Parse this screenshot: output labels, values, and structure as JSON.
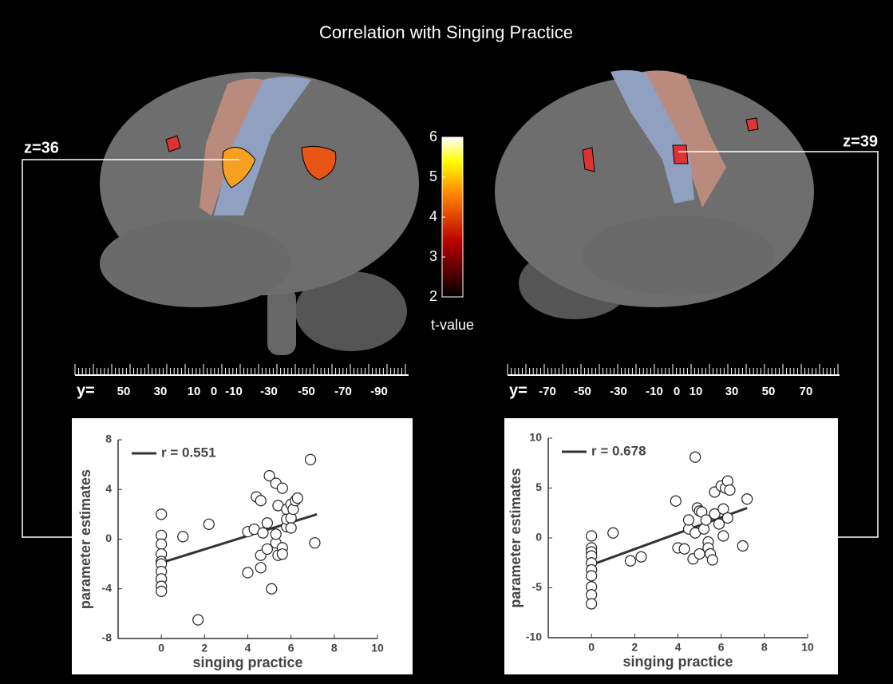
{
  "title": "Correlation with Singing Practice",
  "colorbar": {
    "lim": [
      2,
      6
    ],
    "ticks": [
      2,
      3,
      4,
      5,
      6
    ],
    "label": "t-value"
  },
  "left_panel": {
    "z_label": "z=36",
    "ruler_prefix": "y=",
    "ruler_labels": [
      50,
      30,
      10,
      0,
      -10,
      -30,
      -50,
      -70,
      -90
    ]
  },
  "right_panel": {
    "z_label": "z=39",
    "ruler_prefix": "y=",
    "ruler_labels": [
      -70,
      -50,
      -30,
      -10,
      0,
      10,
      30,
      50,
      70
    ]
  },
  "chart_data": [
    {
      "type": "scatter",
      "xlabel": "singing practice",
      "ylabel": "parameter estimates",
      "legend": "r = 0.551",
      "xlim": [
        -2,
        10
      ],
      "ylim": [
        -8,
        8
      ],
      "xticks": [
        0,
        2,
        4,
        6,
        8,
        10
      ],
      "yticks": [
        -8,
        -4,
        0,
        4,
        8
      ],
      "x": [
        0,
        0,
        0,
        0,
        0,
        0,
        0,
        0,
        0,
        0,
        1.0,
        2.2,
        1.7,
        4.0,
        4.0,
        4.3,
        4.4,
        4.6,
        4.6,
        4.6,
        4.7,
        4.9,
        4.9,
        5.0,
        5.1,
        5.3,
        5.3,
        5.4,
        5.3,
        5.4,
        5.6,
        5.6,
        5.6,
        5.8,
        5.8,
        5.8,
        6.0,
        6.0,
        6.1,
        6.2,
        6.3,
        6.0,
        6.9,
        7.1
      ],
      "y": [
        2.0,
        0.3,
        -0.4,
        -1.2,
        -1.8,
        -2.0,
        -2.6,
        -3.2,
        -3.8,
        -4.2,
        0.2,
        1.2,
        -6.5,
        -2.7,
        0.6,
        0.8,
        3.4,
        3.1,
        -1.3,
        -2.3,
        0.5,
        1.3,
        -0.8,
        5.1,
        -4.0,
        -0.3,
        4.5,
        2.7,
        0.4,
        -1.3,
        4.1,
        -0.7,
        -1.2,
        1.0,
        2.4,
        1.6,
        1.7,
        2.8,
        2.4,
        3.1,
        3.3,
        0.9,
        6.4,
        -0.3
      ],
      "fit": {
        "x": [
          0,
          7.2
        ],
        "y": [
          -1.9,
          2.0
        ]
      }
    },
    {
      "type": "scatter",
      "xlabel": "singing practice",
      "ylabel": "parameter estimates",
      "legend": "r = 0.678",
      "xlim": [
        -2,
        10
      ],
      "ylim": [
        -10,
        10
      ],
      "xticks": [
        0,
        2,
        4,
        6,
        8,
        10
      ],
      "yticks": [
        -10,
        -5,
        0,
        5,
        10
      ],
      "x": [
        0,
        0,
        0,
        0,
        0,
        0,
        0,
        0,
        0,
        0,
        1.0,
        1.8,
        2.3,
        3.9,
        4.0,
        4.3,
        4.5,
        4.5,
        4.7,
        4.8,
        4.8,
        4.9,
        5.0,
        5.0,
        5.1,
        5.2,
        5.3,
        5.4,
        5.4,
        5.5,
        5.6,
        5.7,
        5.7,
        5.9,
        6.0,
        6.1,
        6.1,
        6.2,
        6.3,
        6.3,
        6.4,
        7.0,
        7.2
      ],
      "y": [
        0.2,
        -1.0,
        -1.4,
        -1.8,
        -2.5,
        -3.2,
        -3.8,
        -4.9,
        -5.7,
        -6.6,
        0.5,
        -2.3,
        -1.9,
        3.7,
        -1.0,
        -1.1,
        0.9,
        1.8,
        -2.1,
        8.1,
        0.5,
        3.0,
        -1.6,
        2.7,
        2.6,
        0.9,
        1.8,
        -0.4,
        -1.0,
        -1.6,
        -2.2,
        4.6,
        2.4,
        1.4,
        5.2,
        2.9,
        0.2,
        5.0,
        5.7,
        2.0,
        4.8,
        -0.8,
        3.9
      ],
      "fit": {
        "x": [
          0,
          7.2
        ],
        "y": [
          -2.7,
          3.0
        ]
      }
    }
  ]
}
